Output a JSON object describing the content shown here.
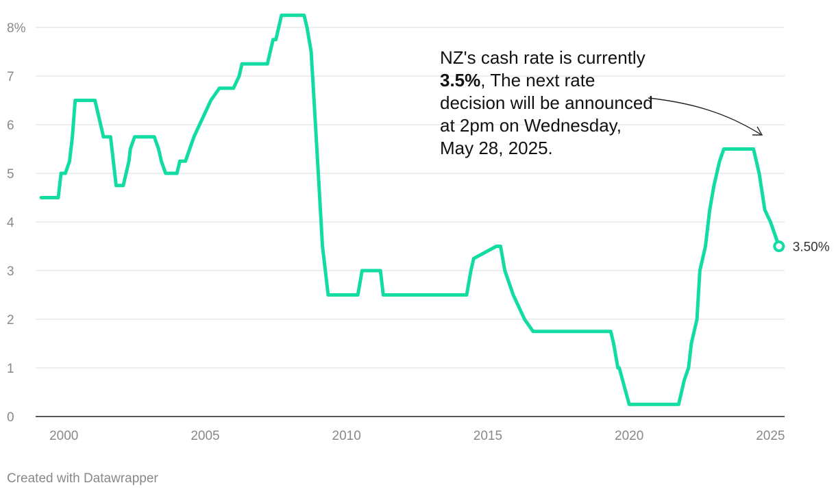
{
  "chart_data": {
    "type": "line",
    "title": "",
    "xlabel": "",
    "ylabel": "",
    "ylim": [
      0,
      8
    ],
    "xlim": [
      1999,
      2025.5
    ],
    "grid": true,
    "line_color": "#13dca3",
    "y_ticks": [
      "0",
      "1",
      "2",
      "3",
      "4",
      "5",
      "6",
      "7",
      "8%"
    ],
    "x_ticks": [
      "2000",
      "2005",
      "2010",
      "2015",
      "2020",
      "2025"
    ],
    "series": [
      {
        "x": [
          1999.2,
          1999.8,
          1999.9,
          2000.05,
          2000.2,
          2000.3,
          2000.4,
          2001.1,
          2001.4,
          2001.65,
          2001.7,
          2001.75,
          2001.85,
          2002.1,
          2002.3,
          2002.35,
          2002.5,
          2002.6,
          2003.2,
          2003.35,
          2003.45,
          2003.6,
          2004.0,
          2004.1,
          2004.3,
          2004.45,
          2004.6,
          2004.8,
          2005.0,
          2005.2,
          2005.5,
          2006.0,
          2006.2,
          2006.3,
          2007.2,
          2007.4,
          2007.5,
          2007.7,
          2008.5,
          2008.6,
          2008.75,
          2008.85,
          2009.0,
          2009.15,
          2009.35,
          2010.4,
          2010.55,
          2011.2,
          2011.3,
          2014.1,
          2014.25,
          2014.4,
          2014.5,
          2015.3,
          2015.45,
          2015.6,
          2015.75,
          2015.9,
          2016.1,
          2016.3,
          2016.6,
          2016.75,
          2016.9,
          2019.35,
          2019.45,
          2019.6,
          2019.65,
          2020.0,
          2020.1,
          2021.6,
          2021.75,
          2021.95,
          2022.1,
          2022.2,
          2022.4,
          2022.5,
          2022.7,
          2022.85,
          2023.0,
          2023.2,
          2023.35,
          2024.4,
          2024.6,
          2024.8,
          2025.0,
          2025.3
        ],
        "y": [
          4.5,
          4.5,
          5.0,
          5.0,
          5.25,
          5.75,
          6.5,
          6.5,
          5.75,
          5.75,
          5.5,
          5.25,
          4.75,
          4.75,
          5.25,
          5.5,
          5.75,
          5.75,
          5.75,
          5.5,
          5.25,
          5.0,
          5.0,
          5.25,
          5.25,
          5.5,
          5.75,
          6.0,
          6.25,
          6.5,
          6.75,
          6.75,
          7.0,
          7.25,
          7.25,
          7.75,
          7.75,
          8.25,
          8.25,
          8.0,
          7.5,
          6.5,
          5.0,
          3.5,
          2.5,
          2.5,
          3.0,
          3.0,
          2.5,
          2.5,
          2.5,
          3.0,
          3.25,
          3.5,
          3.5,
          3.0,
          2.75,
          2.5,
          2.25,
          2.0,
          1.75,
          1.75,
          1.75,
          1.75,
          1.5,
          1.0,
          1.0,
          0.25,
          0.25,
          0.25,
          0.25,
          0.75,
          1.0,
          1.5,
          2.0,
          3.0,
          3.5,
          4.25,
          4.75,
          5.25,
          5.5,
          5.5,
          5.0,
          4.25,
          4.0,
          3.5
        ]
      }
    ],
    "end_label": "3.50%"
  },
  "annotation": {
    "text_before": "NZ's cash rate is currently ",
    "text_bold": "3.5%",
    "text_after": ", The next rate decision will be announced at 2pm on Wednesday, May 28, 2025."
  },
  "footer": {
    "credit": "Created with Datawrapper"
  }
}
